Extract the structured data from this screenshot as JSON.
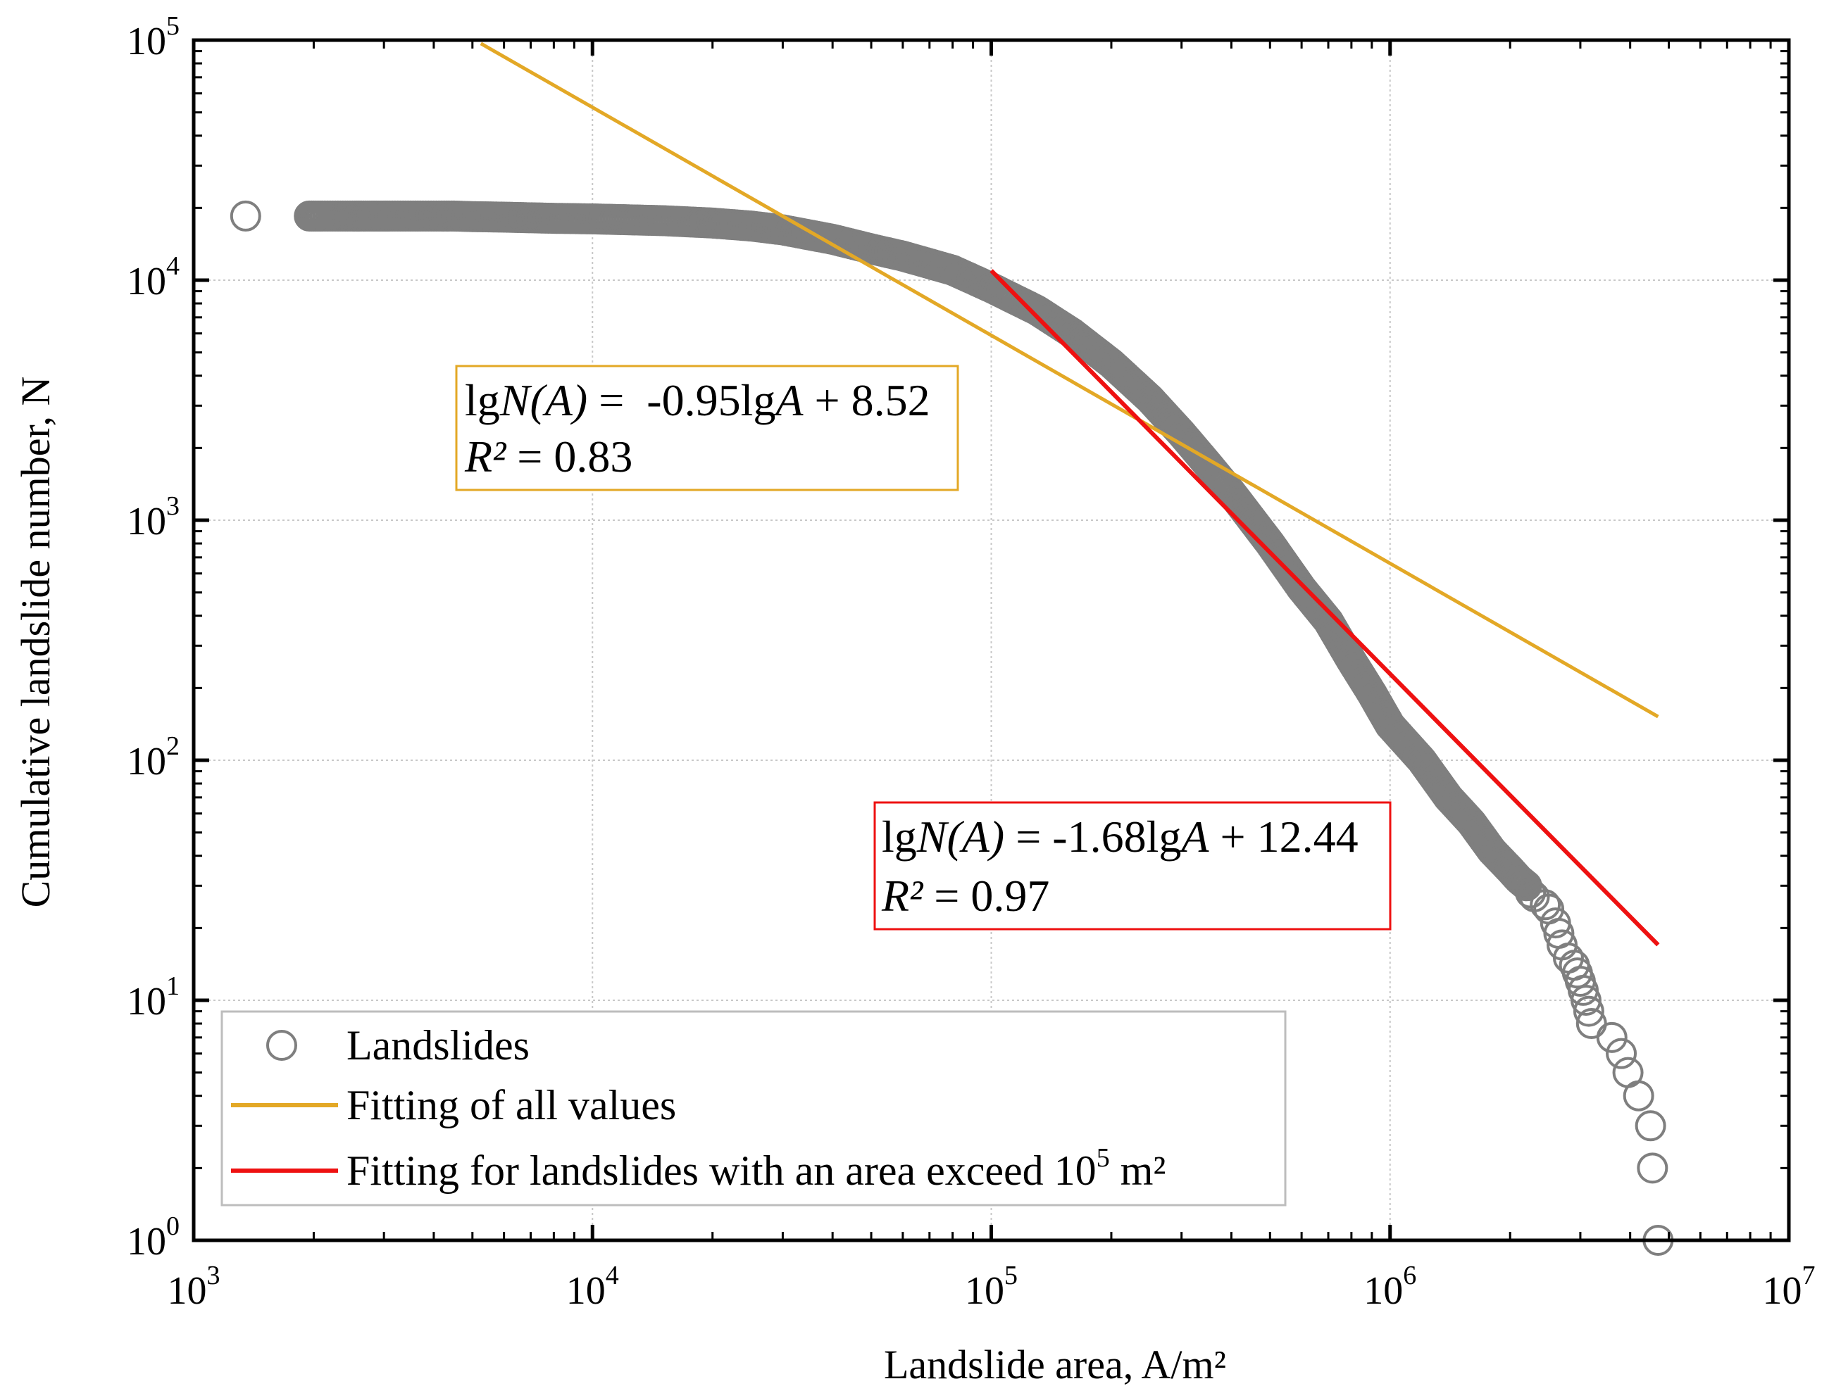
{
  "chart_data": {
    "type": "scatter",
    "x_scale": "log",
    "y_scale": "log",
    "xlabel": "Landslide area, A/m²",
    "ylabel": "Cumulative landslide number, N",
    "xlim": [
      1000,
      10000000
    ],
    "ylim": [
      1,
      100000
    ],
    "grid": true,
    "x_ticks": [
      {
        "base": "10",
        "exp": "3",
        "value": 1000
      },
      {
        "base": "10",
        "exp": "4",
        "value": 10000
      },
      {
        "base": "10",
        "exp": "5",
        "value": 100000
      },
      {
        "base": "10",
        "exp": "6",
        "value": 1000000
      },
      {
        "base": "10",
        "exp": "7",
        "value": 10000000
      }
    ],
    "y_ticks": [
      {
        "base": "10",
        "exp": "0",
        "value": 1
      },
      {
        "base": "10",
        "exp": "1",
        "value": 10
      },
      {
        "base": "10",
        "exp": "2",
        "value": 100
      },
      {
        "base": "10",
        "exp": "3",
        "value": 1000
      },
      {
        "base": "10",
        "exp": "4",
        "value": 10000
      },
      {
        "base": "10",
        "exp": "5",
        "value": 100000
      }
    ],
    "scatter_series": {
      "name": "Landslides",
      "color": "#7f7f7f",
      "points": [
        [
          1350,
          18500
        ],
        [
          1950,
          18500
        ],
        [
          2000,
          18500
        ],
        [
          2050,
          18500
        ],
        [
          2100,
          18500
        ],
        [
          2200,
          18500
        ],
        [
          2300,
          18500
        ],
        [
          2400,
          18500
        ],
        [
          2500,
          18500
        ],
        [
          2600,
          18500
        ],
        [
          2700,
          18500
        ],
        [
          2800,
          18500
        ],
        [
          2900,
          18500
        ],
        [
          3000,
          18500
        ],
        [
          3100,
          18500
        ],
        [
          3300,
          18500
        ],
        [
          3500,
          18500
        ],
        [
          3700,
          18500
        ],
        [
          4000,
          18500
        ],
        [
          4500,
          18500
        ],
        [
          5000,
          18400
        ],
        [
          6000,
          18300
        ],
        [
          8000,
          18100
        ],
        [
          10000,
          18000
        ],
        [
          15000,
          17700
        ],
        [
          20000,
          17300
        ],
        [
          25000,
          16800
        ],
        [
          30000,
          16200
        ],
        [
          40000,
          14800
        ],
        [
          50000,
          13500
        ],
        [
          60000,
          12600
        ],
        [
          80000,
          11000
        ],
        [
          100000,
          9300
        ],
        [
          130000,
          7500
        ],
        [
          160000,
          6000
        ],
        [
          200000,
          4500
        ],
        [
          250000,
          3200
        ],
        [
          300000,
          2300
        ],
        [
          350000,
          1700
        ],
        [
          400000,
          1300
        ],
        [
          500000,
          800
        ],
        [
          600000,
          520
        ],
        [
          700000,
          380
        ],
        [
          800000,
          260
        ],
        [
          900000,
          190
        ],
        [
          1000000,
          140
        ],
        [
          1200000,
          100
        ],
        [
          1400000,
          70
        ],
        [
          1600000,
          55
        ],
        [
          1800000,
          42
        ],
        [
          2000000,
          35
        ],
        [
          2100000,
          32
        ],
        [
          2200000,
          30
        ],
        [
          2250000,
          28
        ],
        [
          2300000,
          27
        ],
        [
          2450000,
          25
        ],
        [
          2500000,
          24
        ],
        [
          2600000,
          21
        ],
        [
          2650000,
          19
        ],
        [
          2700000,
          17
        ],
        [
          2800000,
          15
        ],
        [
          2900000,
          14
        ],
        [
          2950000,
          13
        ],
        [
          3000000,
          12
        ],
        [
          3050000,
          11
        ],
        [
          3100000,
          10
        ],
        [
          3150000,
          9
        ],
        [
          3200000,
          8
        ],
        [
          3600000,
          7
        ],
        [
          3800000,
          6
        ],
        [
          3950000,
          5
        ],
        [
          4200000,
          4
        ],
        [
          4500000,
          3
        ],
        [
          4550000,
          2
        ],
        [
          4700000,
          1
        ]
      ]
    },
    "fit_lines": [
      {
        "name": "Fitting of all values",
        "color": "#e3a826",
        "slope": -0.95,
        "intercept": 8.52,
        "x_from": 5250,
        "x_to": 4700000
      },
      {
        "name": "Fitting for landslides with an area exceed 10⁵ m²",
        "color": "#ee1111",
        "slope": -1.68,
        "intercept": 12.44,
        "x_from": 100000,
        "x_to": 4700000
      }
    ],
    "annotations": [
      {
        "color": "#e3a826",
        "eq": {
          "lg": "lg",
          "N": "N(A)",
          "rest": " =  -0.95lg",
          "A": "A",
          "tail": " + 8.52"
        },
        "r2": {
          "R": "R²",
          "rest": " = 0.83"
        }
      },
      {
        "color": "#ee1111",
        "eq": {
          "lg": "lg",
          "N": "N(A)",
          "rest": " = -1.68lg",
          "A": "A",
          "tail": " + 12.44"
        },
        "r2": {
          "R": "R²",
          "rest": " = 0.97"
        }
      }
    ],
    "legend": {
      "position": "bottom-left",
      "entries": [
        {
          "label": "Landslides",
          "marker": "circle"
        },
        {
          "label": "Fitting of all values",
          "marker": "line"
        },
        {
          "label_main": "Fitting for landslides with an area exceed 10",
          "label_sup": "5",
          "label_tail": " m²",
          "marker": "line"
        }
      ]
    }
  }
}
